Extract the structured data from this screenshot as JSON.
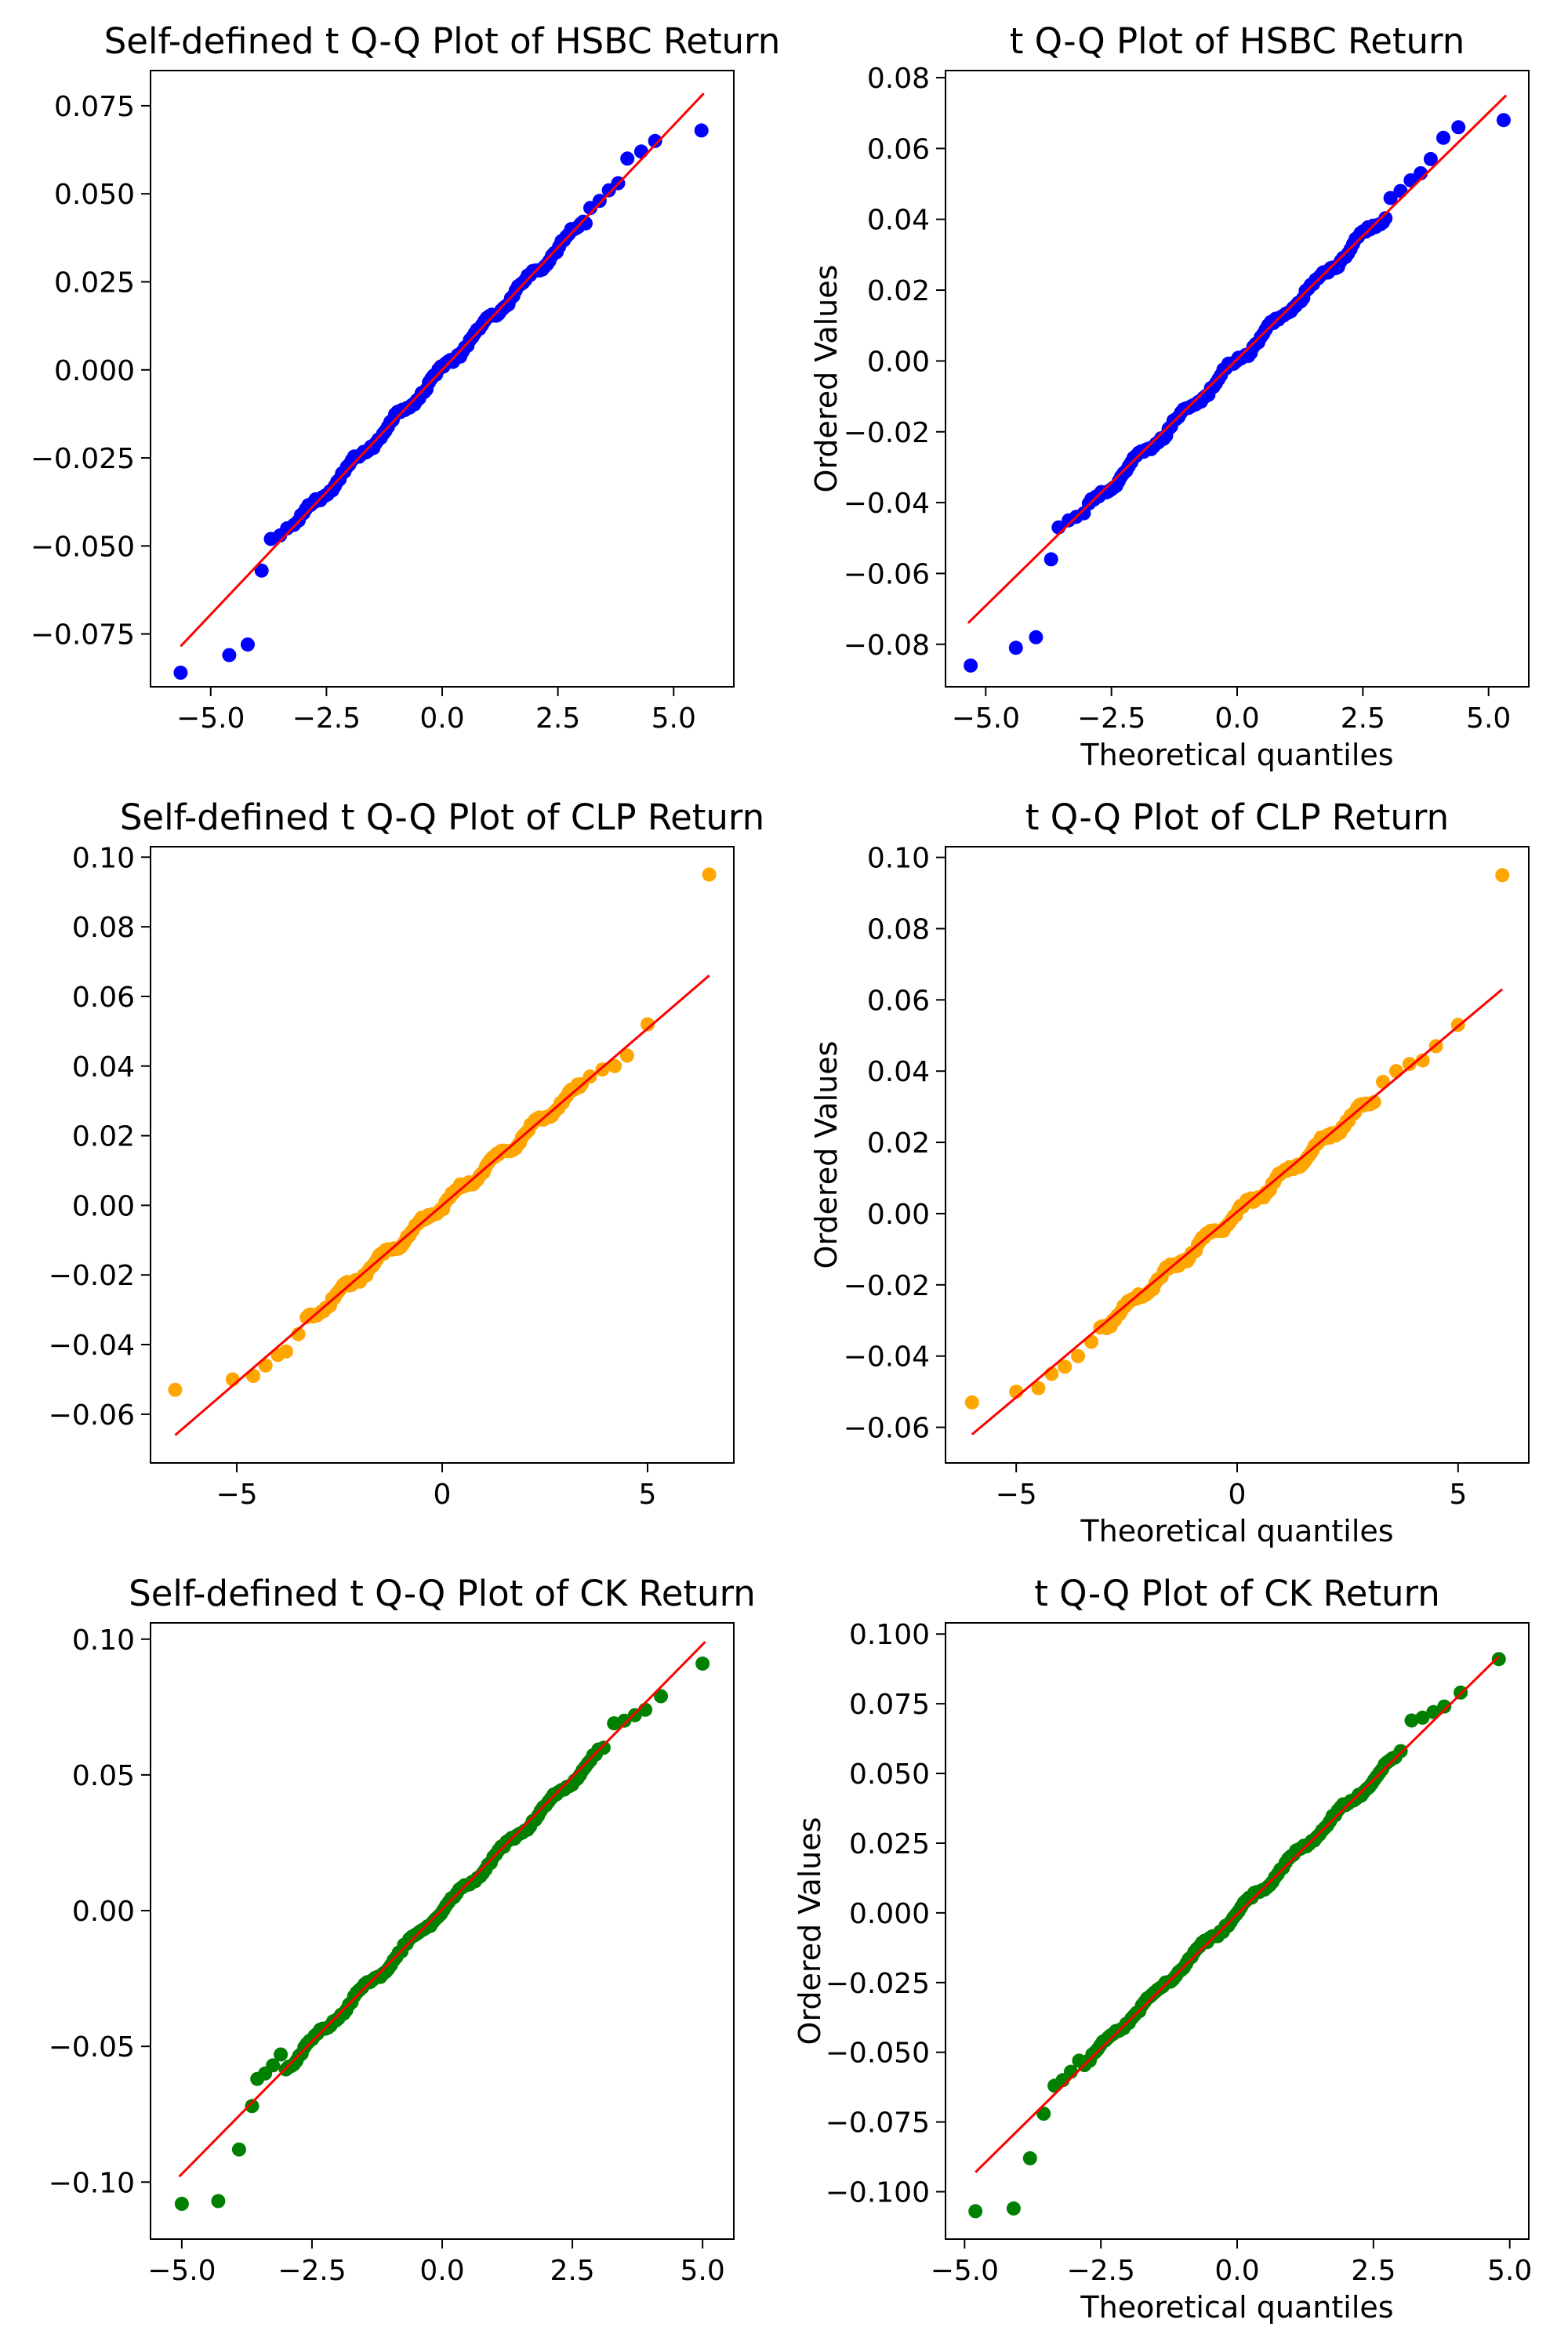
{
  "figure": {
    "background": "#ffffff",
    "line_color": "#ff0000"
  },
  "chart_data": [
    {
      "type": "scatter",
      "title": "Self-defined t Q-Q Plot of HSBC Return",
      "xlabel": "",
      "ylabel": "",
      "color": "#0000ff",
      "xlim": [
        -6.3,
        6.3
      ],
      "ylim": [
        -0.09,
        0.085
      ],
      "xticks": [
        -5.0,
        -2.5,
        0.0,
        2.5,
        5.0
      ],
      "xtick_labels": [
        "−5.0",
        "−2.5",
        "0.0",
        "2.5",
        "5.0"
      ],
      "yticks": [
        -0.075,
        -0.05,
        -0.025,
        0.0,
        0.025,
        0.05,
        0.075
      ],
      "ytick_labels": [
        "−0.075",
        "−0.050",
        "−0.025",
        "0.000",
        "0.025",
        "0.050",
        "0.075"
      ],
      "fit_line": {
        "x": [
          -5.65,
          5.65
        ],
        "y": [
          -0.0785,
          0.0785
        ]
      },
      "tail_points": {
        "x": [
          -5.65,
          -4.6,
          -4.2,
          -3.9,
          -3.7,
          -3.5,
          -3.35,
          -3.2,
          3.2,
          3.4,
          3.6,
          3.8,
          4.0,
          4.3,
          4.6,
          5.6
        ],
        "y": [
          -0.086,
          -0.081,
          -0.078,
          -0.057,
          -0.048,
          -0.047,
          -0.045,
          -0.044,
          0.046,
          0.048,
          0.051,
          0.053,
          0.06,
          0.062,
          0.065,
          0.068
        ]
      },
      "core": {
        "x_min": -3.1,
        "x_max": 3.1,
        "count": 120,
        "slope": 0.01385
      }
    },
    {
      "type": "scatter",
      "title": "t Q-Q Plot of HSBC Return",
      "xlabel": "Theoretical quantiles",
      "ylabel": "Ordered Values",
      "color": "#0000ff",
      "xlim": [
        -5.8,
        5.8
      ],
      "ylim": [
        -0.092,
        0.082
      ],
      "xticks": [
        -5.0,
        -2.5,
        0.0,
        2.5,
        5.0
      ],
      "xtick_labels": [
        "−5.0",
        "−2.5",
        "0.0",
        "2.5",
        "5.0"
      ],
      "yticks": [
        -0.08,
        -0.06,
        -0.04,
        -0.02,
        0.0,
        0.02,
        0.04,
        0.06,
        0.08
      ],
      "ytick_labels": [
        "−0.08",
        "−0.06",
        "−0.04",
        "−0.02",
        "0.00",
        "0.02",
        "0.04",
        "0.06",
        "0.08"
      ],
      "fit_line": {
        "x": [
          -5.35,
          5.35
        ],
        "y": [
          -0.074,
          0.075
        ]
      },
      "tail_points": {
        "x": [
          -5.3,
          -4.4,
          -4.0,
          -3.7,
          -3.55,
          -3.35,
          -3.2,
          -3.05,
          3.05,
          3.25,
          3.45,
          3.65,
          3.85,
          4.1,
          4.4,
          5.3
        ],
        "y": [
          -0.086,
          -0.081,
          -0.078,
          -0.056,
          -0.047,
          -0.045,
          -0.044,
          -0.043,
          0.046,
          0.048,
          0.051,
          0.053,
          0.057,
          0.063,
          0.066,
          0.068
        ]
      },
      "core": {
        "x_min": -2.95,
        "x_max": 2.95,
        "count": 120,
        "slope": 0.01405
      }
    },
    {
      "type": "scatter",
      "title": "Self-defined t Q-Q Plot of CLP Return",
      "xlabel": "",
      "ylabel": "",
      "color": "#ffa500",
      "xlim": [
        -7.1,
        7.1
      ],
      "ylim": [
        -0.074,
        0.103
      ],
      "xticks": [
        -5,
        0,
        5
      ],
      "xtick_labels": [
        "−5",
        "0",
        "5"
      ],
      "yticks": [
        -0.06,
        -0.04,
        -0.02,
        0.0,
        0.02,
        0.04,
        0.06,
        0.08,
        0.1
      ],
      "ytick_labels": [
        "−0.06",
        "−0.04",
        "−0.02",
        "0.00",
        "0.02",
        "0.04",
        "0.06",
        "0.08",
        "0.10"
      ],
      "fit_line": {
        "x": [
          -6.5,
          6.5
        ],
        "y": [
          -0.066,
          0.066
        ]
      },
      "tail_points": {
        "x": [
          -6.5,
          -5.1,
          -4.6,
          -4.3,
          -4.0,
          -3.8,
          -3.5,
          3.6,
          3.9,
          4.2,
          4.5,
          5.0,
          6.5
        ],
        "y": [
          -0.053,
          -0.05,
          -0.049,
          -0.046,
          -0.043,
          -0.042,
          -0.037,
          0.037,
          0.039,
          0.04,
          0.043,
          0.052,
          0.095
        ]
      },
      "core": {
        "x_min": -3.3,
        "x_max": 3.4,
        "count": 130,
        "slope": 0.01015
      }
    },
    {
      "type": "scatter",
      "title": "t Q-Q Plot of CLP Return",
      "xlabel": "Theoretical quantiles",
      "ylabel": "Ordered Values",
      "color": "#ffa500",
      "xlim": [
        -6.6,
        6.6
      ],
      "ylim": [
        -0.07,
        0.103
      ],
      "xticks": [
        -5,
        0,
        5
      ],
      "xtick_labels": [
        "−5",
        "0",
        "5"
      ],
      "yticks": [
        -0.06,
        -0.04,
        -0.02,
        0.0,
        0.02,
        0.04,
        0.06,
        0.08,
        0.1
      ],
      "ytick_labels": [
        "−0.06",
        "−0.04",
        "−0.02",
        "0.00",
        "0.02",
        "0.04",
        "0.06",
        "0.08",
        "0.10"
      ],
      "fit_line": {
        "x": [
          -6.0,
          6.0
        ],
        "y": [
          -0.062,
          0.063
        ]
      },
      "tail_points": {
        "x": [
          -6.0,
          -5.0,
          -4.5,
          -4.2,
          -3.9,
          -3.6,
          -3.3,
          3.3,
          3.6,
          3.9,
          4.2,
          4.5,
          5.0,
          6.0
        ],
        "y": [
          -0.053,
          -0.05,
          -0.049,
          -0.045,
          -0.043,
          -0.04,
          -0.036,
          0.037,
          0.04,
          0.042,
          0.043,
          0.047,
          0.053,
          0.095
        ]
      },
      "core": {
        "x_min": -3.1,
        "x_max": 3.1,
        "count": 130,
        "slope": 0.01045
      }
    },
    {
      "type": "scatter",
      "title": "Self-defined t Q-Q Plot of CK Return",
      "xlabel": "",
      "ylabel": "",
      "color": "#008000",
      "xlim": [
        -5.6,
        5.6
      ],
      "ylim": [
        -0.121,
        0.106
      ],
      "xticks": [
        -5.0,
        -2.5,
        0.0,
        2.5,
        5.0
      ],
      "xtick_labels": [
        "−5.0",
        "−2.5",
        "0.0",
        "2.5",
        "5.0"
      ],
      "yticks": [
        -0.1,
        -0.05,
        0.0,
        0.05,
        0.1
      ],
      "ytick_labels": [
        "−0.10",
        "−0.05",
        "0.00",
        "0.05",
        "0.10"
      ],
      "fit_line": {
        "x": [
          -5.05,
          5.05
        ],
        "y": [
          -0.098,
          0.099
        ]
      },
      "tail_points": {
        "x": [
          -5.0,
          -4.3,
          -3.9,
          -3.65,
          -3.55,
          -3.4,
          -3.25,
          -3.1,
          3.1,
          3.3,
          3.5,
          3.7,
          3.9,
          4.2,
          5.0
        ],
        "y": [
          -0.108,
          -0.107,
          -0.088,
          -0.072,
          -0.062,
          -0.06,
          -0.057,
          -0.053,
          0.06,
          0.069,
          0.07,
          0.072,
          0.074,
          0.079,
          0.091
        ]
      },
      "core": {
        "x_min": -3.0,
        "x_max": 3.0,
        "count": 120,
        "slope": 0.0193
      }
    },
    {
      "type": "scatter",
      "title": "t Q-Q Plot of CK Return",
      "xlabel": "Theoretical quantiles",
      "ylabel": "Ordered Values",
      "color": "#008000",
      "xlim": [
        -5.35,
        5.35
      ],
      "ylim": [
        -0.117,
        0.104
      ],
      "xticks": [
        -5.0,
        -2.5,
        0.0,
        2.5,
        5.0
      ],
      "xtick_labels": [
        "−5.0",
        "−2.5",
        "0.0",
        "2.5",
        "5.0"
      ],
      "yticks": [
        -0.1,
        -0.075,
        -0.05,
        -0.025,
        0.0,
        0.025,
        0.05,
        0.075,
        0.1
      ],
      "ytick_labels": [
        "−0.100",
        "−0.075",
        "−0.050",
        "−0.025",
        "0.000",
        "0.025",
        "0.050",
        "0.075",
        "0.100"
      ],
      "fit_line": {
        "x": [
          -4.8,
          4.8
        ],
        "y": [
          -0.093,
          0.092
        ]
      },
      "tail_points": {
        "x": [
          -4.8,
          -4.1,
          -3.8,
          -3.55,
          -3.35,
          -3.2,
          -3.05,
          -2.9,
          3.0,
          3.2,
          3.4,
          3.6,
          3.8,
          4.1,
          4.8
        ],
        "y": [
          -0.107,
          -0.106,
          -0.088,
          -0.072,
          -0.062,
          -0.06,
          -0.057,
          -0.053,
          0.058,
          0.069,
          0.07,
          0.072,
          0.074,
          0.079,
          0.091
        ]
      },
      "core": {
        "x_min": -2.8,
        "x_max": 2.9,
        "count": 120,
        "slope": 0.0192
      }
    }
  ]
}
